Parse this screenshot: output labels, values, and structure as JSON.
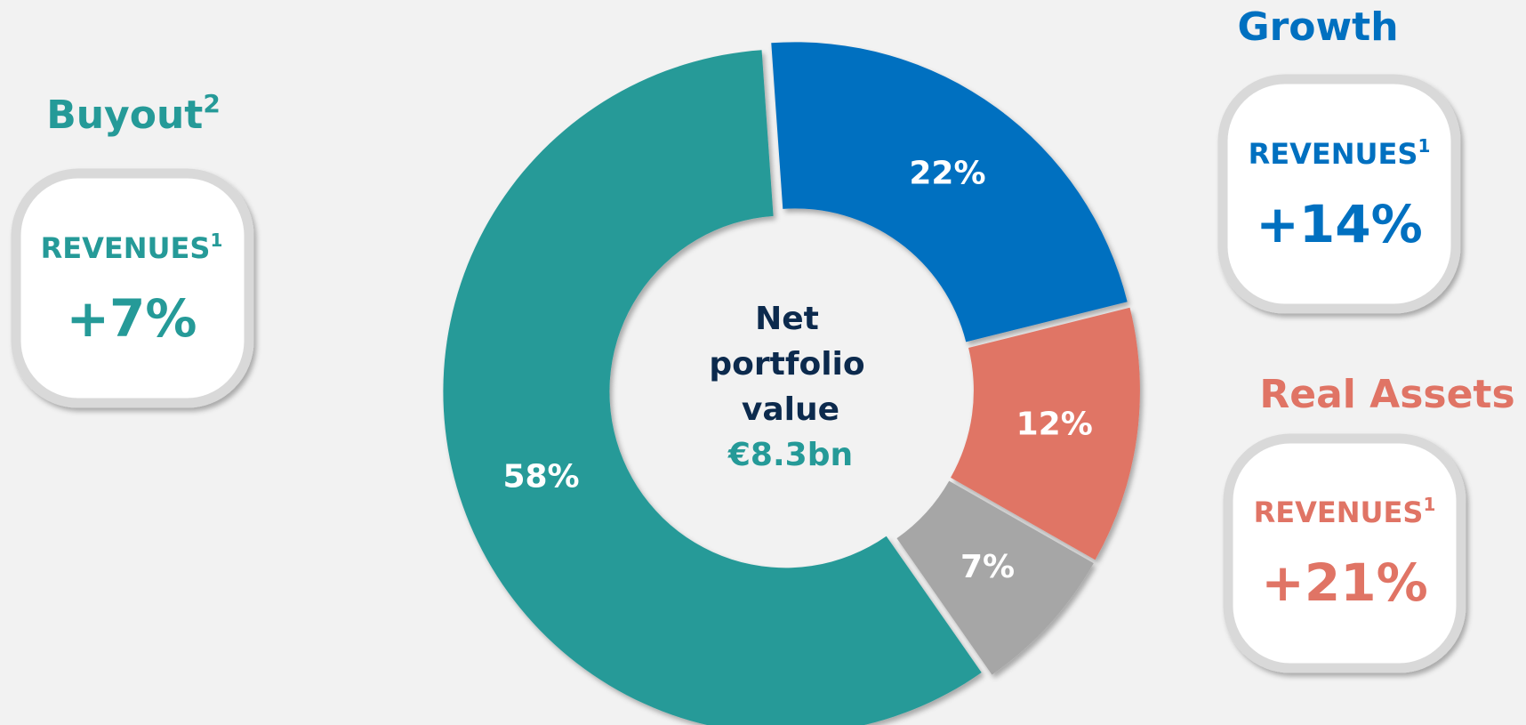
{
  "chart_data": {
    "type": "donut",
    "values": [
      22,
      12,
      7,
      58
    ],
    "value_labels": [
      "22%",
      "12%",
      "7%",
      "58%"
    ],
    "colors": [
      "#0070c0",
      "#e07465",
      "#a6a6a6",
      "#259a98"
    ],
    "center_text": [
      "Net",
      "portfolio",
      "value"
    ],
    "center_value": "€8.3bn"
  },
  "panels": [
    {
      "title": "Buyout",
      "title_sup": "2",
      "label": "REVENUES",
      "label_sup": "1",
      "value": "+7%"
    },
    {
      "title": "Growth",
      "label": "REVENUES",
      "label_sup": "1",
      "value": "+14%"
    },
    {
      "title": "Real Assets",
      "label": "REVENUES",
      "label_sup": "1",
      "value": "+21%"
    }
  ]
}
